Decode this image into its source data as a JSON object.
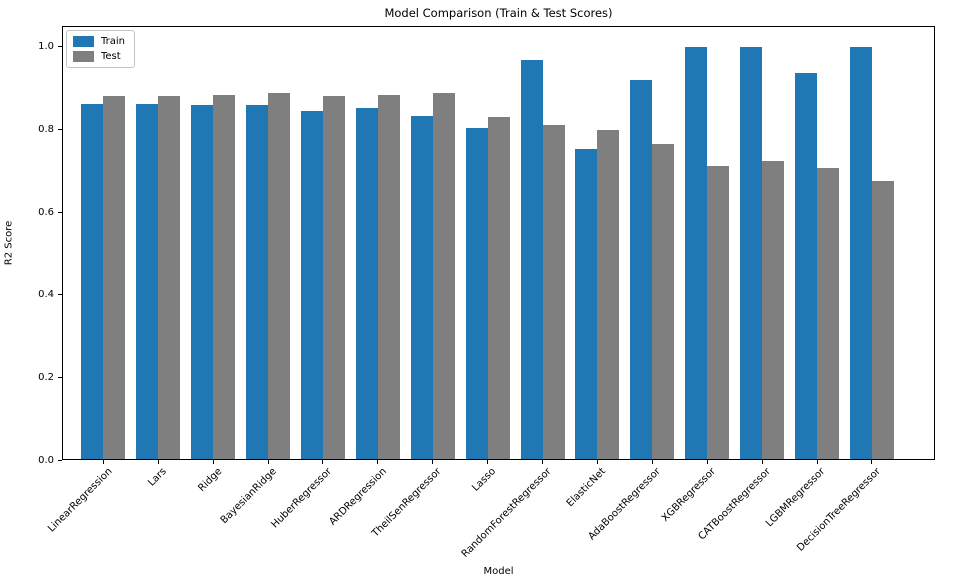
{
  "chart_data": {
    "type": "bar",
    "title": "Model Comparison (Train & Test Scores)",
    "xlabel": "Model",
    "ylabel": "R2 Score",
    "ylim": [
      0,
      1.05
    ],
    "yticks": [
      0.0,
      0.2,
      0.4,
      0.6,
      0.8,
      1.0
    ],
    "grid": false,
    "legend_position": "upper left",
    "x_tick_rotation": 45,
    "categories": [
      "LinearRegression",
      "Lars",
      "Ridge",
      "BayesianRidge",
      "HuberRegressor",
      "ARDRegression",
      "TheilSenRegressor",
      "Lasso",
      "RandomForestRegressor",
      "ElasticNet",
      "AdaBoostRegressor",
      "XGBRegressor",
      "CATBoostRegressor",
      "LGBMRegressor",
      "DecisionTreeRegressor"
    ],
    "series": [
      {
        "name": "Train",
        "color": "#1f77b4",
        "values": [
          0.858,
          0.858,
          0.857,
          0.857,
          0.843,
          0.85,
          0.83,
          0.801,
          0.965,
          0.749,
          0.917,
          0.996,
          0.996,
          0.934,
          0.996
        ]
      },
      {
        "name": "Test",
        "color": "#7f7f7f",
        "values": [
          0.878,
          0.878,
          0.881,
          0.886,
          0.878,
          0.881,
          0.885,
          0.828,
          0.807,
          0.796,
          0.761,
          0.71,
          0.72,
          0.703,
          0.672
        ]
      }
    ]
  }
}
